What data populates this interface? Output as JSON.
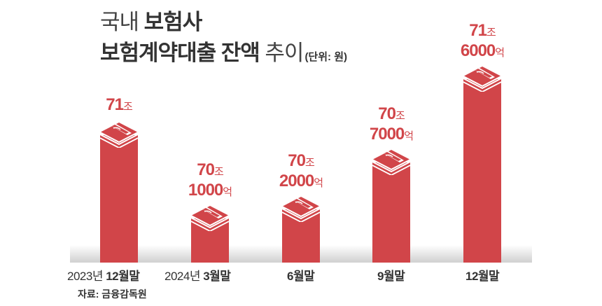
{
  "header": {
    "title_line1_light": "국내 ",
    "title_line1_bold": "보험사",
    "title_line2_bold": "보험계약대출 잔액",
    "title_line2_light": " 추이",
    "unit": "(단위: 원)"
  },
  "source": "자료: 금융감독원",
  "colors": {
    "bar": "#d14549",
    "text": "#333333",
    "floor": "#d0d0d0"
  },
  "bars": [
    {
      "year": "2023년 ",
      "period": "12월말",
      "value_jo": "71",
      "value_eok": "",
      "value": 71.0
    },
    {
      "year": "2024년 ",
      "period": "3월말",
      "value_jo": "70",
      "value_eok": "1000",
      "value": 70.1
    },
    {
      "year": "",
      "period": "6월말",
      "value_jo": "70",
      "value_eok": "2000",
      "value": 70.2
    },
    {
      "year": "",
      "period": "9월말",
      "value_jo": "70",
      "value_eok": "7000",
      "value": 70.7
    },
    {
      "year": "",
      "period": "12월말",
      "value_jo": "71",
      "value_eok": "6000",
      "value": 71.6
    }
  ],
  "labels": {
    "jo": "조",
    "eok": "억"
  },
  "chart_data": {
    "type": "bar",
    "title": "국내 보험사 보험계약대출 잔액 추이",
    "subtitle": "(단위: 원)",
    "categories": [
      "2023년 12월말",
      "2024년 3월말",
      "6월말",
      "9월말",
      "12월말"
    ],
    "values": [
      71.0,
      70.1,
      70.2,
      70.7,
      71.6
    ],
    "value_labels": [
      "71조",
      "70조 1000억",
      "70조 2000억",
      "70조 7000억",
      "71조 6000억"
    ],
    "unit": "조원",
    "xlabel": "",
    "ylabel": "",
    "grid": false,
    "legend": null,
    "source": "자료: 금융감독원"
  }
}
